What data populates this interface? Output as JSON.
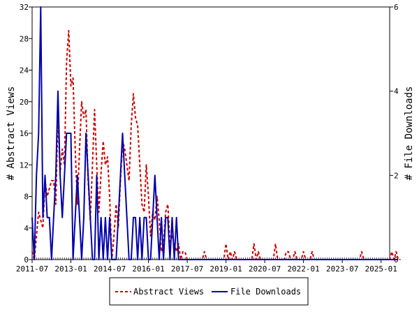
{
  "chart_data": {
    "type": "line",
    "title": "",
    "xlabel": "",
    "ylabel": "# Abstract Views",
    "y2label": "# File Downloads",
    "ylim": [
      0,
      32
    ],
    "y2lim": [
      0,
      6
    ],
    "y_ticks": [
      "0",
      "4",
      "8",
      "12",
      "16",
      "20",
      "24",
      "28",
      "32"
    ],
    "y2_ticks": [
      "0",
      "2",
      "4",
      "6"
    ],
    "x_tick_labels": [
      "2011-07",
      "2013-01",
      "2014-07",
      "2016-01",
      "2017-07",
      "2019-01",
      "2020-07",
      "2022-01",
      "2023-07",
      "2025-01"
    ],
    "x_start": "2011-07",
    "x_end": "2025-05",
    "grid": false,
    "legend_position": "bottom",
    "colors": {
      "abstract_views": "#cc0000",
      "file_downloads": "#0000aa"
    },
    "series": [
      {
        "name": "Abstract Views",
        "axis": "left",
        "style": "dashed",
        "values": [
          1,
          0,
          3,
          6,
          5,
          4,
          10,
          8,
          9,
          10,
          10,
          7,
          18,
          11,
          14,
          12,
          25,
          29,
          22,
          23,
          14,
          7,
          14,
          20,
          18,
          19,
          10,
          5,
          12,
          19,
          12,
          6,
          11,
          15,
          12,
          13,
          8,
          0,
          3,
          7,
          4,
          10,
          15,
          14,
          12,
          10,
          17,
          21,
          18,
          17,
          12,
          7,
          6,
          12,
          8,
          3,
          6,
          5,
          8,
          5,
          1,
          2,
          6,
          7,
          2,
          3,
          2,
          1,
          2,
          0,
          1,
          1,
          0,
          0,
          0,
          0,
          0,
          0,
          0,
          0,
          1,
          0,
          0,
          0,
          0,
          0,
          0,
          0,
          0,
          0,
          2,
          0,
          1,
          0,
          1,
          0,
          0,
          0,
          0,
          0,
          0,
          0,
          0,
          2,
          0,
          1,
          0,
          0,
          0,
          0,
          0,
          0,
          0,
          2,
          0,
          0,
          0,
          0,
          1,
          1,
          0,
          0,
          1,
          0,
          0,
          0,
          1,
          0,
          0,
          0,
          1,
          0,
          0,
          0,
          0,
          0,
          0,
          0,
          0,
          0,
          0,
          0,
          0,
          0,
          0,
          0,
          0,
          0,
          0,
          0,
          0,
          0,
          0,
          1,
          0,
          0,
          0,
          0,
          0,
          0,
          0,
          0,
          0,
          0,
          0,
          0,
          0,
          1,
          0,
          1,
          0,
          0
        ]
      },
      {
        "name": "File Downloads",
        "axis": "right",
        "style": "solid",
        "values": [
          1,
          0,
          2,
          3,
          6,
          1,
          2,
          1,
          1,
          0,
          1,
          2,
          4,
          2,
          1,
          2,
          3,
          3,
          3,
          0,
          1,
          2,
          1,
          0,
          1,
          3,
          2,
          1,
          0,
          0,
          2,
          0,
          1,
          0,
          1,
          0,
          1,
          0,
          0,
          0,
          1,
          2,
          3,
          2,
          1,
          0,
          0,
          1,
          1,
          0,
          1,
          0,
          1,
          1,
          0,
          0,
          1,
          2,
          1,
          0,
          1,
          0,
          1,
          1,
          0,
          1,
          0,
          1,
          0,
          0,
          0,
          0,
          0,
          0,
          0,
          0,
          0,
          0,
          0,
          0,
          0,
          0,
          0,
          0,
          0,
          0,
          0,
          0,
          0,
          0,
          0,
          0,
          0,
          0,
          0,
          0,
          0,
          0,
          0,
          0,
          0,
          0,
          0,
          0,
          0,
          0,
          0,
          0,
          0,
          0,
          0,
          0,
          0,
          0,
          0,
          0,
          0,
          0,
          0,
          0,
          0,
          0,
          0,
          0,
          0,
          0,
          0,
          0,
          0,
          0,
          0,
          0,
          0,
          0,
          0,
          0,
          0,
          0,
          0,
          0,
          0,
          0,
          0,
          0,
          0,
          0,
          0,
          0,
          0,
          0,
          0,
          0,
          0,
          0,
          0,
          0,
          0,
          0,
          0,
          0,
          0,
          0,
          0,
          0,
          0,
          0,
          0,
          0,
          0,
          0,
          0
        ]
      }
    ]
  }
}
